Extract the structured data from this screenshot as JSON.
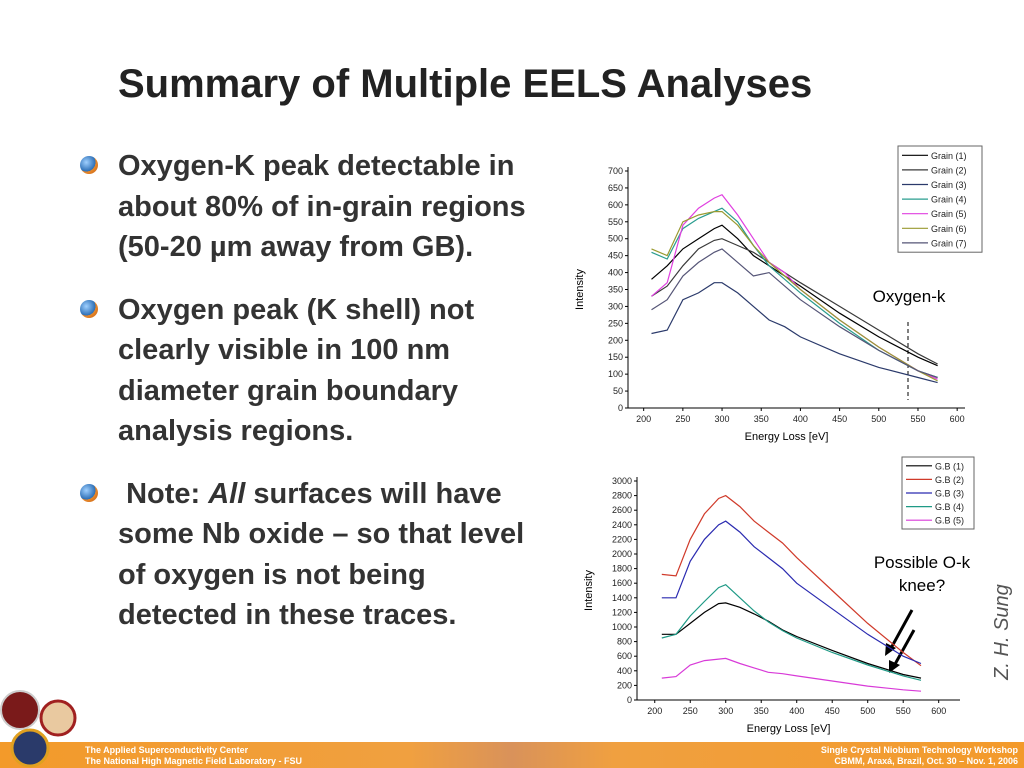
{
  "title": "Summary of Multiple EELS Analyses",
  "bullets": [
    "Oxygen-K peak detectable in about 80% of in-grain regions (50-20 µm away from GB).",
    "Oxygen peak (K shell) not clearly visible in 100 nm diameter grain boundary analysis regions.",
    [
      "Note: ",
      "All",
      " surfaces will have some Nb oxide – so that level of oxygen is not being detected in these traces."
    ]
  ],
  "credit": "Z. H. Sung",
  "footer": {
    "left": [
      "The Applied Superconductivity Center",
      "The National High Magnetic Field Laboratory - FSU"
    ],
    "right": [
      "Single Crystal Niobium Technology Workshop",
      "CBMM, Araxá, Brazil, Oct. 30 – Nov. 1, 2006"
    ]
  },
  "chart_data": [
    {
      "type": "line",
      "xlabel": "Energy Loss [eV]",
      "ylabel": "Intensity",
      "annotation": [
        "Oxygen-k"
      ],
      "x": [
        210,
        230,
        250,
        270,
        290,
        300,
        320,
        340,
        360,
        380,
        400,
        450,
        500,
        550,
        575
      ],
      "xlim": [
        180,
        610
      ],
      "xticks": [
        200,
        250,
        300,
        350,
        400,
        450,
        500,
        550,
        600
      ],
      "ylim": [
        0,
        700
      ],
      "yticks": [
        0,
        50,
        100,
        150,
        200,
        250,
        300,
        350,
        400,
        450,
        500,
        550,
        600,
        650,
        700
      ],
      "series": [
        {
          "name": "Grain (1)",
          "color": "#000000",
          "values": [
            380,
            420,
            470,
            500,
            530,
            540,
            500,
            450,
            420,
            390,
            360,
            280,
            210,
            150,
            125
          ]
        },
        {
          "name": "Grain (2)",
          "color": "#3a3a3a",
          "values": [
            330,
            360,
            420,
            470,
            495,
            500,
            480,
            460,
            430,
            400,
            370,
            300,
            230,
            160,
            130
          ]
        },
        {
          "name": "Grain (3)",
          "color": "#2b3a6b",
          "values": [
            220,
            230,
            320,
            340,
            370,
            370,
            340,
            300,
            260,
            240,
            210,
            160,
            120,
            90,
            75
          ]
        },
        {
          "name": "Grain (4)",
          "color": "#2a9d8f",
          "values": [
            460,
            440,
            530,
            560,
            580,
            590,
            550,
            480,
            420,
            380,
            340,
            250,
            170,
            110,
            90
          ]
        },
        {
          "name": "Grain (5)",
          "color": "#e040e0",
          "values": [
            330,
            370,
            540,
            590,
            620,
            630,
            570,
            500,
            430,
            400,
            350,
            260,
            180,
            110,
            85
          ]
        },
        {
          "name": "Grain (6)",
          "color": "#9a9a30",
          "values": [
            470,
            450,
            550,
            570,
            580,
            580,
            540,
            480,
            430,
            390,
            350,
            260,
            180,
            110,
            80
          ]
        },
        {
          "name": "Grain (7)",
          "color": "#555577",
          "values": [
            290,
            320,
            390,
            430,
            460,
            470,
            430,
            390,
            400,
            360,
            320,
            240,
            170,
            110,
            90
          ]
        }
      ]
    },
    {
      "type": "line",
      "xlabel": "Energy Loss [eV]",
      "ylabel": "Intensity",
      "annotation": [
        "Possible O-k",
        "knee?"
      ],
      "x": [
        210,
        230,
        250,
        270,
        290,
        300,
        320,
        340,
        360,
        380,
        400,
        450,
        500,
        550,
        575
      ],
      "xlim": [
        175,
        630
      ],
      "xticks": [
        200,
        250,
        300,
        350,
        400,
        450,
        500,
        550,
        600
      ],
      "ylim": [
        0,
        3000
      ],
      "yticks": [
        0,
        200,
        400,
        600,
        800,
        1000,
        1200,
        1400,
        1600,
        1800,
        2000,
        2200,
        2400,
        2600,
        2800,
        3000
      ],
      "series": [
        {
          "name": "G.B (1)",
          "color": "#000000",
          "values": [
            900,
            900,
            1050,
            1200,
            1320,
            1330,
            1270,
            1180,
            1080,
            960,
            870,
            680,
            500,
            350,
            300
          ]
        },
        {
          "name": "G.B (2)",
          "color": "#d03a2a",
          "values": [
            1720,
            1700,
            2200,
            2550,
            2760,
            2800,
            2650,
            2450,
            2300,
            2150,
            1950,
            1500,
            1050,
            650,
            470
          ]
        },
        {
          "name": "G.B (3)",
          "color": "#2a2ab0",
          "values": [
            1400,
            1400,
            1900,
            2200,
            2400,
            2450,
            2300,
            2100,
            1950,
            1800,
            1600,
            1250,
            900,
            600,
            500
          ]
        },
        {
          "name": "G.B (4)",
          "color": "#1f9a86",
          "values": [
            850,
            900,
            1150,
            1350,
            1540,
            1580,
            1400,
            1220,
            1070,
            950,
            850,
            650,
            480,
            330,
            270
          ]
        },
        {
          "name": "G.B (5)",
          "color": "#d83ad8",
          "values": [
            300,
            320,
            480,
            540,
            560,
            570,
            500,
            440,
            380,
            360,
            330,
            260,
            190,
            140,
            120
          ]
        }
      ]
    }
  ]
}
